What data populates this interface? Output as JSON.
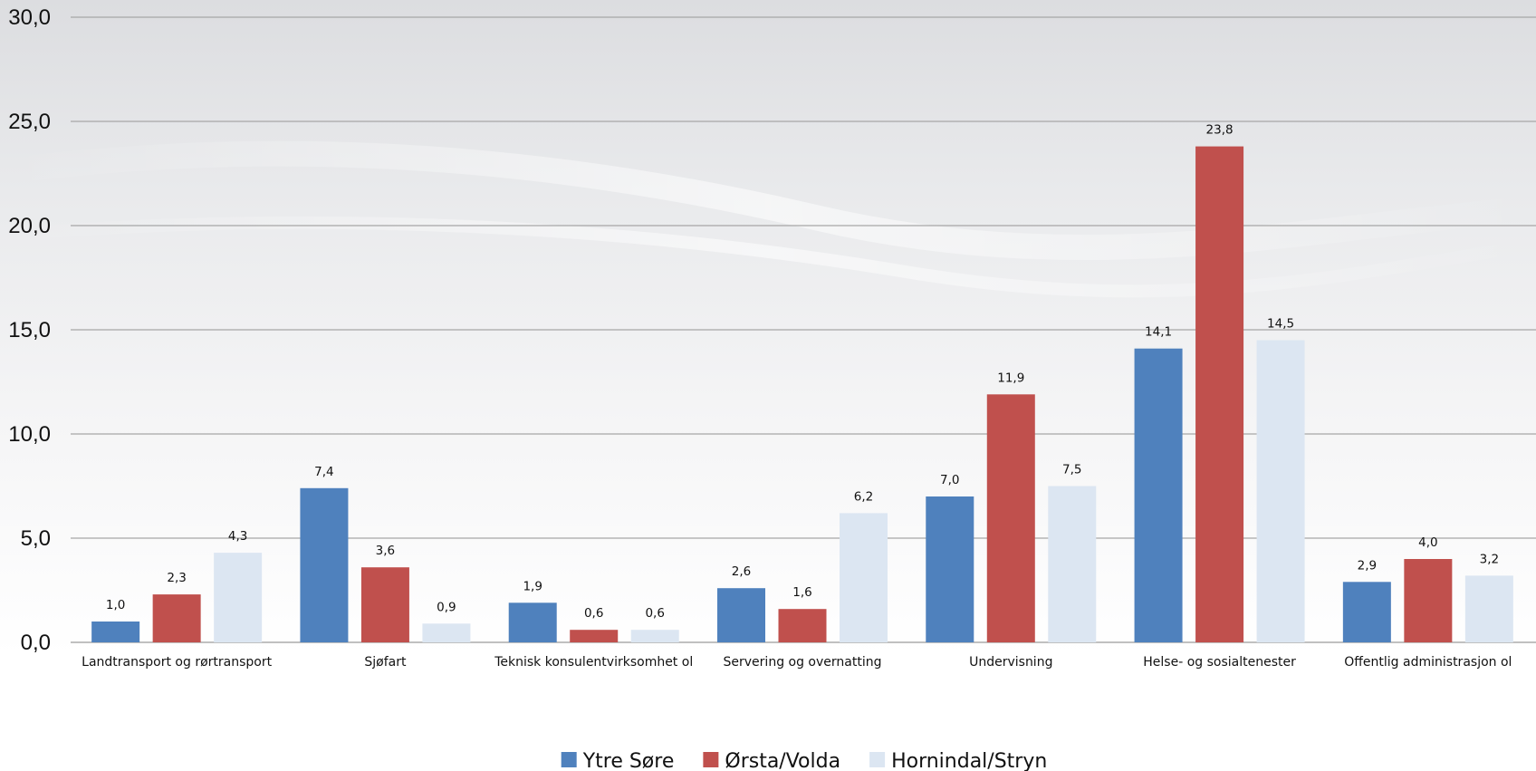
{
  "chart_data": {
    "type": "bar",
    "categories": [
      "Landtransport og rørtransport",
      "Sjøfart",
      "Teknisk konsulentvirksomhet ol",
      "Servering og overnatting",
      "Undervisning",
      "Helse- og sosialtenester",
      "Offentlig administrasjon ol"
    ],
    "series": [
      {
        "name": "Ytre Søre",
        "color": "#4f81bd",
        "values": [
          1.0,
          7.4,
          1.9,
          2.6,
          7.0,
          14.1,
          2.9
        ]
      },
      {
        "name": "Ørsta/Volda",
        "color": "#c0504d",
        "values": [
          2.3,
          3.6,
          0.6,
          1.6,
          11.9,
          23.8,
          4.0
        ]
      },
      {
        "name": "Hornindal/Stryn",
        "color": "#dce6f2",
        "values": [
          4.3,
          0.9,
          0.6,
          6.2,
          7.5,
          14.5,
          3.2
        ]
      }
    ],
    "title": "",
    "xlabel": "",
    "ylabel": "",
    "ylim": [
      0,
      30
    ],
    "yticks": [
      "0,0",
      "5,0",
      "10,0",
      "15,0",
      "20,0",
      "25,0",
      "30,0"
    ],
    "data_labels": [
      [
        "1,0",
        "7,4",
        "1,9",
        "2,6",
        "7,0",
        "14,1",
        "2,9"
      ],
      [
        "2,3",
        "3,6",
        "0,6",
        "1,6",
        "11,9",
        "23,8",
        "4,0"
      ],
      [
        "4,3",
        "0,9",
        "0,6",
        "6,2",
        "7,5",
        "14,5",
        "3,2"
      ]
    ],
    "grid": true,
    "legend_position": "bottom-center"
  }
}
